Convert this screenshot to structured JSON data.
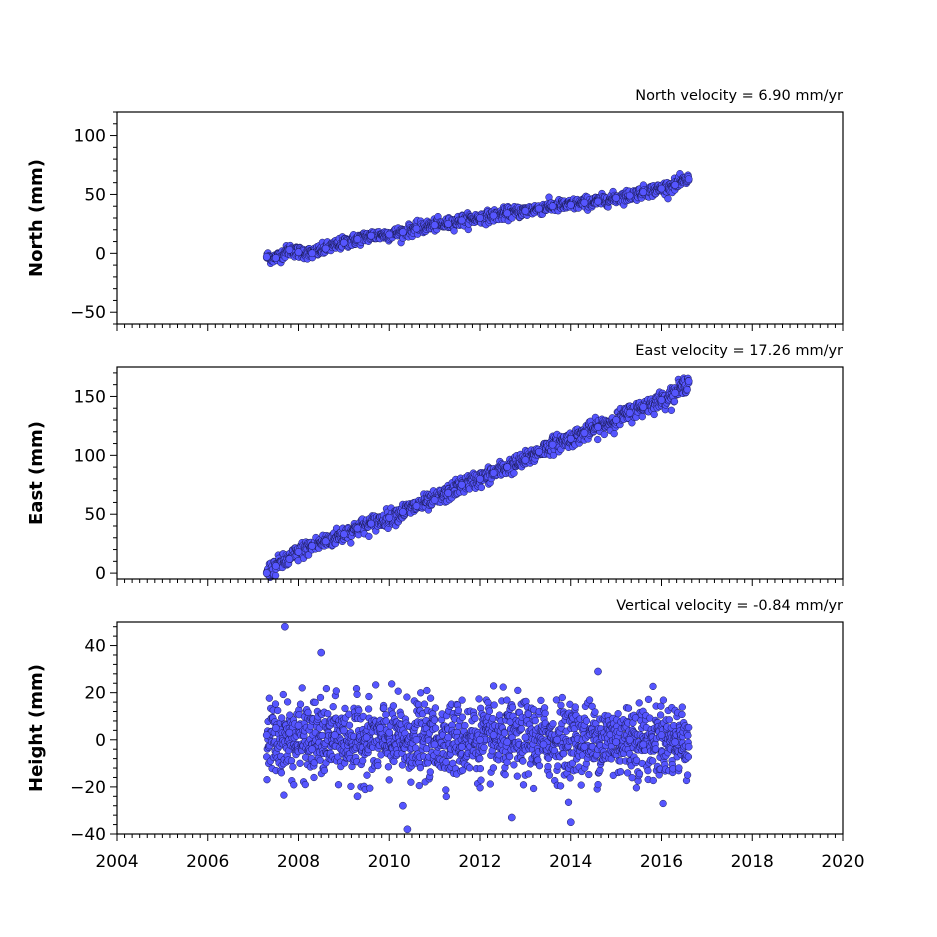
{
  "chart_data": [
    {
      "type": "scatter",
      "title": "North velocity = 6.90 mm/yr",
      "ylabel": "North (mm)",
      "xlim": [
        2004,
        2020
      ],
      "ylim": [
        -60,
        120
      ],
      "yticks": [
        -50,
        0,
        50,
        100
      ],
      "ytick_labels": [
        "−50",
        "0",
        "50",
        "100"
      ],
      "show_xtick_labels": false,
      "series": [
        {
          "marker_color": "#5555ff",
          "x": [
            2007.3,
            2007.5,
            2007.8,
            2008.0,
            2008.3,
            2008.6,
            2009.0,
            2009.3,
            2009.6,
            2010.0,
            2010.3,
            2010.6,
            2011.0,
            2011.3,
            2011.6,
            2012.0,
            2012.3,
            2012.6,
            2013.0,
            2013.3,
            2013.6,
            2014.0,
            2014.3,
            2014.6,
            2015.0,
            2015.3,
            2015.6,
            2016.0,
            2016.3,
            2016.6
          ],
          "y": [
            -3,
            -4,
            3,
            1,
            0,
            4,
            9,
            12,
            15,
            16,
            18,
            21,
            24,
            25,
            28,
            30,
            32,
            34,
            36,
            38,
            40,
            41,
            43,
            44,
            47,
            49,
            52,
            55,
            58,
            63
          ]
        }
      ]
    },
    {
      "type": "scatter",
      "title": "East velocity = 17.26 mm/yr",
      "ylabel": "East (mm)",
      "xlim": [
        2004,
        2020
      ],
      "ylim": [
        -5,
        175
      ],
      "yticks": [
        0,
        50,
        100,
        150
      ],
      "ytick_labels": [
        "0",
        "50",
        "100",
        "150"
      ],
      "show_xtick_labels": false,
      "series": [
        {
          "marker_color": "#5555ff",
          "x": [
            2007.3,
            2007.5,
            2007.8,
            2008.0,
            2008.3,
            2008.6,
            2009.0,
            2009.3,
            2009.6,
            2010.0,
            2010.3,
            2010.6,
            2011.0,
            2011.3,
            2011.6,
            2012.0,
            2012.3,
            2012.6,
            2013.0,
            2013.3,
            2013.6,
            2014.0,
            2014.3,
            2014.6,
            2015.0,
            2015.3,
            2015.6,
            2016.0,
            2016.3,
            2016.6
          ],
          "y": [
            0,
            6,
            12,
            18,
            23,
            27,
            33,
            38,
            42,
            47,
            52,
            57,
            62,
            68,
            75,
            80,
            85,
            90,
            96,
            103,
            109,
            114,
            119,
            124,
            130,
            136,
            141,
            147,
            153,
            163
          ]
        }
      ]
    },
    {
      "type": "scatter",
      "title": "Vertical velocity = -0.84 mm/yr",
      "ylabel": "Height (mm)",
      "xlim": [
        2004,
        2020
      ],
      "ylim": [
        -40,
        50
      ],
      "yticks": [
        -40,
        -20,
        0,
        20,
        40
      ],
      "ytick_labels": [
        "−40",
        "−20",
        "0",
        "20",
        "40"
      ],
      "xticks": [
        2004,
        2006,
        2008,
        2010,
        2012,
        2014,
        2016,
        2018,
        2020
      ],
      "xtick_labels": [
        "2004",
        "2006",
        "2008",
        "2010",
        "2012",
        "2014",
        "2016",
        "2018",
        "2020"
      ],
      "show_xtick_labels": true,
      "series": [
        {
          "marker_color": "#5555ff",
          "x": [
            2007.3,
            2007.5,
            2007.7,
            2007.8,
            2008.0,
            2008.3,
            2008.5,
            2008.8,
            2009.0,
            2009.3,
            2009.5,
            2009.8,
            2010.0,
            2010.3,
            2010.4,
            2010.6,
            2011.0,
            2011.3,
            2011.6,
            2012.0,
            2012.3,
            2012.6,
            2012.7,
            2013.0,
            2013.4,
            2013.7,
            2014.0,
            2014.3,
            2014.6,
            2015.0,
            2015.3,
            2015.6,
            2016.0,
            2016.3,
            2016.6
          ],
          "y": [
            2,
            5,
            48,
            3,
            6,
            -4,
            37,
            2,
            4,
            -24,
            1,
            5,
            3,
            -28,
            -38,
            0,
            -2,
            1,
            -3,
            0,
            2,
            -1,
            -33,
            1,
            -2,
            0,
            -35,
            -3,
            29,
            -1,
            0,
            -2,
            2,
            -1,
            -3
          ]
        }
      ]
    }
  ]
}
